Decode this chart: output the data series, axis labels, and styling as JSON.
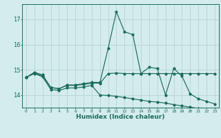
{
  "title": "",
  "xlabel": "Humidex (Indice chaleur)",
  "background_color": "#d4ecec",
  "grid_color": "#b8d8d8",
  "line_color": "#1a6b5a",
  "x_values": [
    0,
    1,
    2,
    3,
    4,
    5,
    6,
    7,
    8,
    9,
    10,
    11,
    12,
    13,
    14,
    15,
    16,
    17,
    18,
    19,
    20,
    21,
    22,
    23
  ],
  "line1": [
    14.7,
    14.9,
    14.8,
    14.3,
    14.25,
    14.4,
    14.4,
    14.45,
    14.5,
    14.5,
    15.85,
    17.3,
    16.5,
    16.4,
    14.85,
    15.1,
    15.05,
    14.0,
    15.05,
    14.75,
    14.05,
    13.85,
    13.75,
    13.65
  ],
  "line2": [
    14.7,
    14.88,
    14.75,
    14.3,
    14.25,
    14.38,
    14.38,
    14.42,
    14.47,
    14.47,
    14.85,
    14.87,
    14.85,
    14.85,
    14.85,
    14.85,
    14.85,
    14.85,
    14.85,
    14.85,
    14.85,
    14.85,
    14.85,
    14.85
  ],
  "line3": [
    14.7,
    14.85,
    14.72,
    14.22,
    14.18,
    14.28,
    14.28,
    14.32,
    14.38,
    14.0,
    13.98,
    13.95,
    13.9,
    13.85,
    13.8,
    13.75,
    13.72,
    13.68,
    13.62,
    13.57,
    13.52,
    13.47,
    13.42,
    13.37
  ],
  "ylim": [
    13.5,
    17.6
  ],
  "yticks": [
    14,
    15,
    16,
    17
  ],
  "xlim": [
    -0.5,
    23.5
  ]
}
